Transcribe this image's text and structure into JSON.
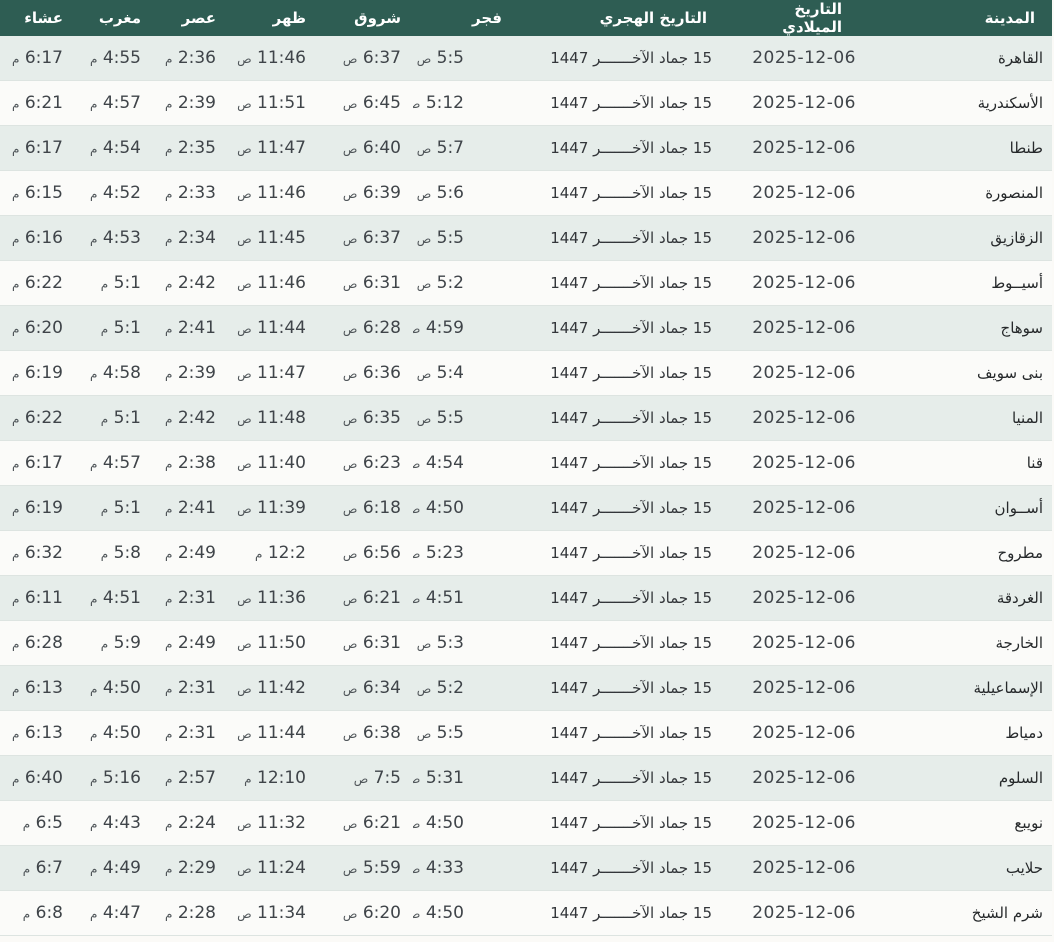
{
  "colors": {
    "header_bg": "#2e5d53",
    "header_text": "#ffffff",
    "row_odd_bg": "#e6edea",
    "row_even_bg": "#fbfbf9",
    "page_bg": "#fbfaf7",
    "scrollbar_border": "#1e4e79",
    "scrollbar_gradient_start": "#5394cb",
    "scrollbar_gradient_end": "#bcdcf1"
  },
  "table": {
    "columns": [
      {
        "key": "city",
        "label": "المدينة"
      },
      {
        "key": "greg",
        "label": "التاريخ الميلادي"
      },
      {
        "key": "hijri",
        "label": "التاريخ الهجري"
      },
      {
        "key": "fajr",
        "label": "فجر"
      },
      {
        "key": "sunrise",
        "label": "شروق"
      },
      {
        "key": "dhuhr",
        "label": "ظهر"
      },
      {
        "key": "asr",
        "label": "عصر"
      },
      {
        "key": "maghrib",
        "label": "مغرب"
      },
      {
        "key": "isha",
        "label": "عشاء"
      }
    ],
    "time_columns": [
      "fajr",
      "sunrise",
      "dhuhr",
      "asr",
      "maghrib",
      "isha"
    ],
    "rows": [
      {
        "city": "القاهرة",
        "greg": "2025-12-06",
        "hijri": "15 جماد الآخـــــــر 1447",
        "fajr": "5:5 ص",
        "sunrise": "6:37 ص",
        "dhuhr": "11:46 ص",
        "asr": "2:36 م",
        "maghrib": "4:55 م",
        "isha": "6:17 م"
      },
      {
        "city": "الأسكندرية",
        "greg": "2025-12-06",
        "hijri": "15 جماد الآخـــــــر 1447",
        "fajr": "5:12 ص",
        "sunrise": "6:45 ص",
        "dhuhr": "11:51 ص",
        "asr": "2:39 م",
        "maghrib": "4:57 م",
        "isha": "6:21 م"
      },
      {
        "city": "طنطا",
        "greg": "2025-12-06",
        "hijri": "15 جماد الآخـــــــر 1447",
        "fajr": "5:7 ص",
        "sunrise": "6:40 ص",
        "dhuhr": "11:47 ص",
        "asr": "2:35 م",
        "maghrib": "4:54 م",
        "isha": "6:17 م"
      },
      {
        "city": "المنصورة",
        "greg": "2025-12-06",
        "hijri": "15 جماد الآخـــــــر 1447",
        "fajr": "5:6 ص",
        "sunrise": "6:39 ص",
        "dhuhr": "11:46 ص",
        "asr": "2:33 م",
        "maghrib": "4:52 م",
        "isha": "6:15 م"
      },
      {
        "city": "الزقازيق",
        "greg": "2025-12-06",
        "hijri": "15 جماد الآخـــــــر 1447",
        "fajr": "5:5 ص",
        "sunrise": "6:37 ص",
        "dhuhr": "11:45 ص",
        "asr": "2:34 م",
        "maghrib": "4:53 م",
        "isha": "6:16 م"
      },
      {
        "city": "أسيــوط",
        "greg": "2025-12-06",
        "hijri": "15 جماد الآخـــــــر 1447",
        "fajr": "5:2 ص",
        "sunrise": "6:31 ص",
        "dhuhr": "11:46 ص",
        "asr": "2:42 م",
        "maghrib": "5:1 م",
        "isha": "6:22 م"
      },
      {
        "city": "سوهاج",
        "greg": "2025-12-06",
        "hijri": "15 جماد الآخـــــــر 1447",
        "fajr": "4:59 ص",
        "sunrise": "6:28 ص",
        "dhuhr": "11:44 ص",
        "asr": "2:41 م",
        "maghrib": "5:1 م",
        "isha": "6:20 م"
      },
      {
        "city": "بنى سويف",
        "greg": "2025-12-06",
        "hijri": "15 جماد الآخـــــــر 1447",
        "fajr": "5:4 ص",
        "sunrise": "6:36 ص",
        "dhuhr": "11:47 ص",
        "asr": "2:39 م",
        "maghrib": "4:58 م",
        "isha": "6:19 م"
      },
      {
        "city": "المنيا",
        "greg": "2025-12-06",
        "hijri": "15 جماد الآخـــــــر 1447",
        "fajr": "5:5 ص",
        "sunrise": "6:35 ص",
        "dhuhr": "11:48 ص",
        "asr": "2:42 م",
        "maghrib": "5:1 م",
        "isha": "6:22 م"
      },
      {
        "city": "قنا",
        "greg": "2025-12-06",
        "hijri": "15 جماد الآخـــــــر 1447",
        "fajr": "4:54 ص",
        "sunrise": "6:23 ص",
        "dhuhr": "11:40 ص",
        "asr": "2:38 م",
        "maghrib": "4:57 م",
        "isha": "6:17 م"
      },
      {
        "city": "أســوان",
        "greg": "2025-12-06",
        "hijri": "15 جماد الآخـــــــر 1447",
        "fajr": "4:50 ص",
        "sunrise": "6:18 ص",
        "dhuhr": "11:39 ص",
        "asr": "2:41 م",
        "maghrib": "5:1 م",
        "isha": "6:19 م"
      },
      {
        "city": "مطروح",
        "greg": "2025-12-06",
        "hijri": "15 جماد الآخـــــــر 1447",
        "fajr": "5:23 ص",
        "sunrise": "6:56 ص",
        "dhuhr": "12:2 م",
        "asr": "2:49 م",
        "maghrib": "5:8 م",
        "isha": "6:32 م"
      },
      {
        "city": "الغردقة",
        "greg": "2025-12-06",
        "hijri": "15 جماد الآخـــــــر 1447",
        "fajr": "4:51 ص",
        "sunrise": "6:21 ص",
        "dhuhr": "11:36 ص",
        "asr": "2:31 م",
        "maghrib": "4:51 م",
        "isha": "6:11 م"
      },
      {
        "city": "الخارجة",
        "greg": "2025-12-06",
        "hijri": "15 جماد الآخـــــــر 1447",
        "fajr": "5:3 ص",
        "sunrise": "6:31 ص",
        "dhuhr": "11:50 ص",
        "asr": "2:49 م",
        "maghrib": "5:9 م",
        "isha": "6:28 م"
      },
      {
        "city": "الإسماعيلية",
        "greg": "2025-12-06",
        "hijri": "15 جماد الآخـــــــر 1447",
        "fajr": "5:2 ص",
        "sunrise": "6:34 ص",
        "dhuhr": "11:42 ص",
        "asr": "2:31 م",
        "maghrib": "4:50 م",
        "isha": "6:13 م"
      },
      {
        "city": "دمياط",
        "greg": "2025-12-06",
        "hijri": "15 جماد الآخـــــــر 1447",
        "fajr": "5:5 ص",
        "sunrise": "6:38 ص",
        "dhuhr": "11:44 ص",
        "asr": "2:31 م",
        "maghrib": "4:50 م",
        "isha": "6:13 م"
      },
      {
        "city": "السلوم",
        "greg": "2025-12-06",
        "hijri": "15 جماد الآخـــــــر 1447",
        "fajr": "5:31 ص",
        "sunrise": "7:5 ص",
        "dhuhr": "12:10 م",
        "asr": "2:57 م",
        "maghrib": "5:16 م",
        "isha": "6:40 م"
      },
      {
        "city": "نويبع",
        "greg": "2025-12-06",
        "hijri": "15 جماد الآخـــــــر 1447",
        "fajr": "4:50 ص",
        "sunrise": "6:21 ص",
        "dhuhr": "11:32 ص",
        "asr": "2:24 م",
        "maghrib": "4:43 م",
        "isha": "6:5 م"
      },
      {
        "city": "حلايب",
        "greg": "2025-12-06",
        "hijri": "15 جماد الآخـــــــر 1447",
        "fajr": "4:33 ص",
        "sunrise": "5:59 ص",
        "dhuhr": "11:24 ص",
        "asr": "2:29 م",
        "maghrib": "4:49 م",
        "isha": "6:7 م"
      },
      {
        "city": "شرم الشيخ",
        "greg": "2025-12-06",
        "hijri": "15 جماد الآخـــــــر 1447",
        "fajr": "4:50 ص",
        "sunrise": "6:20 ص",
        "dhuhr": "11:34 ص",
        "asr": "2:28 م",
        "maghrib": "4:47 م",
        "isha": "6:8 م"
      }
    ]
  }
}
